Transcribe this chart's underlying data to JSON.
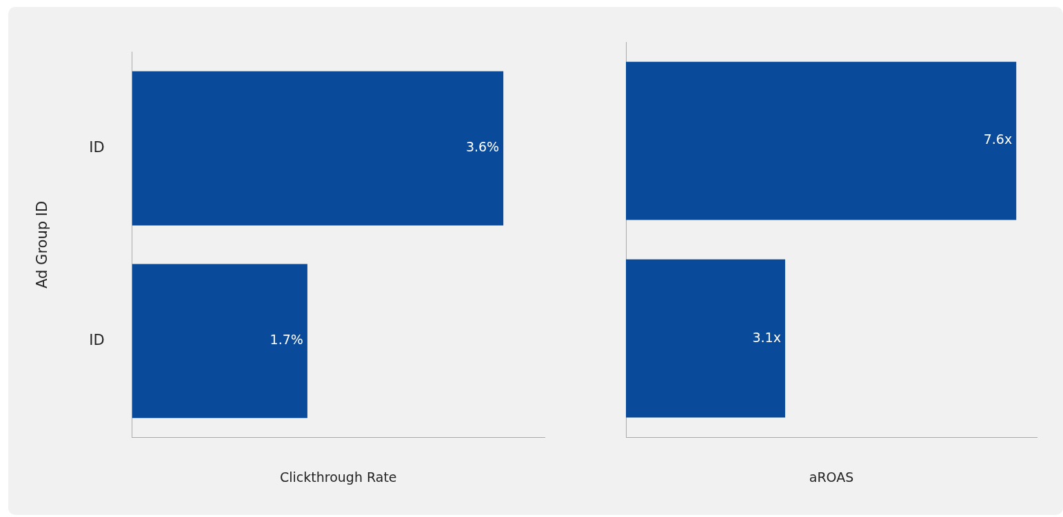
{
  "chart_data": [
    {
      "type": "bar",
      "orientation": "horizontal",
      "categories": [
        "ID",
        "ID"
      ],
      "values": [
        3.6,
        1.7
      ],
      "value_labels": [
        "3.6%",
        "1.7%"
      ],
      "color": "#0a4a9a",
      "xlabel": "Clickthrough Rate",
      "ylabel": "Ad Group ID",
      "tick_labels": "y"
    },
    {
      "type": "bar",
      "orientation": "horizontal",
      "categories": [
        null,
        null
      ],
      "values": [
        7.6,
        3.1
      ],
      "value_labels": [
        "7.6x",
        "3.1x"
      ],
      "color": "#0a4a9a",
      "xlabel": "aROAS",
      "tick_labels": false
    }
  ]
}
